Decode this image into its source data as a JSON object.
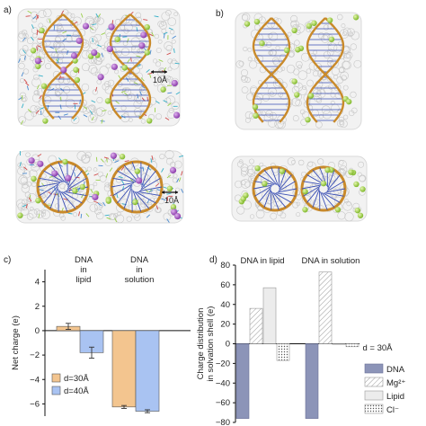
{
  "panel_labels": {
    "a": "a)",
    "b": "b)",
    "c": "c)",
    "d": "d)"
  },
  "scale_bar_label": "10Å",
  "colors": {
    "dna_backbone": "#c98a2a",
    "dna_bases": "#3a4fb5",
    "mg_ion": "#9ccf3a",
    "cl_ion": "#a04ac0",
    "lipid": "#c7c7c7",
    "bar_30": "#f3c58f",
    "bar_40": "#a9c3f2",
    "bar_dna": "#8c94b8",
    "bar_lipid": "#ececec"
  },
  "chart_data": [
    {
      "type": "bar",
      "panel": "c)",
      "ylabel": "Net charge (e)",
      "ylim": [
        -7,
        5
      ],
      "yticks": [
        -6,
        -4,
        -2,
        0,
        2,
        4
      ],
      "group_labels": [
        [
          "DNA",
          "in",
          "lipid"
        ],
        [
          "DNA",
          "in",
          "solution"
        ]
      ],
      "series": [
        {
          "name": "d=30Å",
          "values": [
            0.35,
            -6.25
          ],
          "errors": [
            0.25,
            0.12
          ],
          "color": "#f3c58f"
        },
        {
          "name": "d=40Å",
          "values": [
            -1.8,
            -6.6
          ],
          "errors": [
            0.45,
            0.12
          ],
          "color": "#a9c3f2"
        }
      ],
      "legend": "bottom-left"
    },
    {
      "type": "bar",
      "panel": "d)",
      "ylabel": "Charge distribution in solvation shell (e)",
      "ylabel_lines": [
        "Charge distribution",
        "in solvation shell (e)"
      ],
      "ylim": [
        -80,
        80
      ],
      "yticks": [
        -80,
        -60,
        -40,
        -20,
        0,
        20,
        40,
        60,
        80
      ],
      "group_labels": [
        "DNA in lipid",
        "DNA in solution"
      ],
      "legend_title": "d = 30Å",
      "series": [
        {
          "name": "DNA",
          "values": [
            -76,
            -76
          ],
          "pattern": "solid",
          "color": "#8c94b8"
        },
        {
          "name": "Mg²⁺",
          "values": [
            36,
            73
          ],
          "pattern": "hatch",
          "color": "#ffffff"
        },
        {
          "name": "Lipid",
          "values": [
            57,
            0
          ],
          "pattern": "light",
          "color": "#ececec"
        },
        {
          "name": "Cl⁻",
          "values": [
            -17,
            -3
          ],
          "pattern": "dots",
          "color": "#ffffff"
        }
      ],
      "legend": "right"
    }
  ]
}
